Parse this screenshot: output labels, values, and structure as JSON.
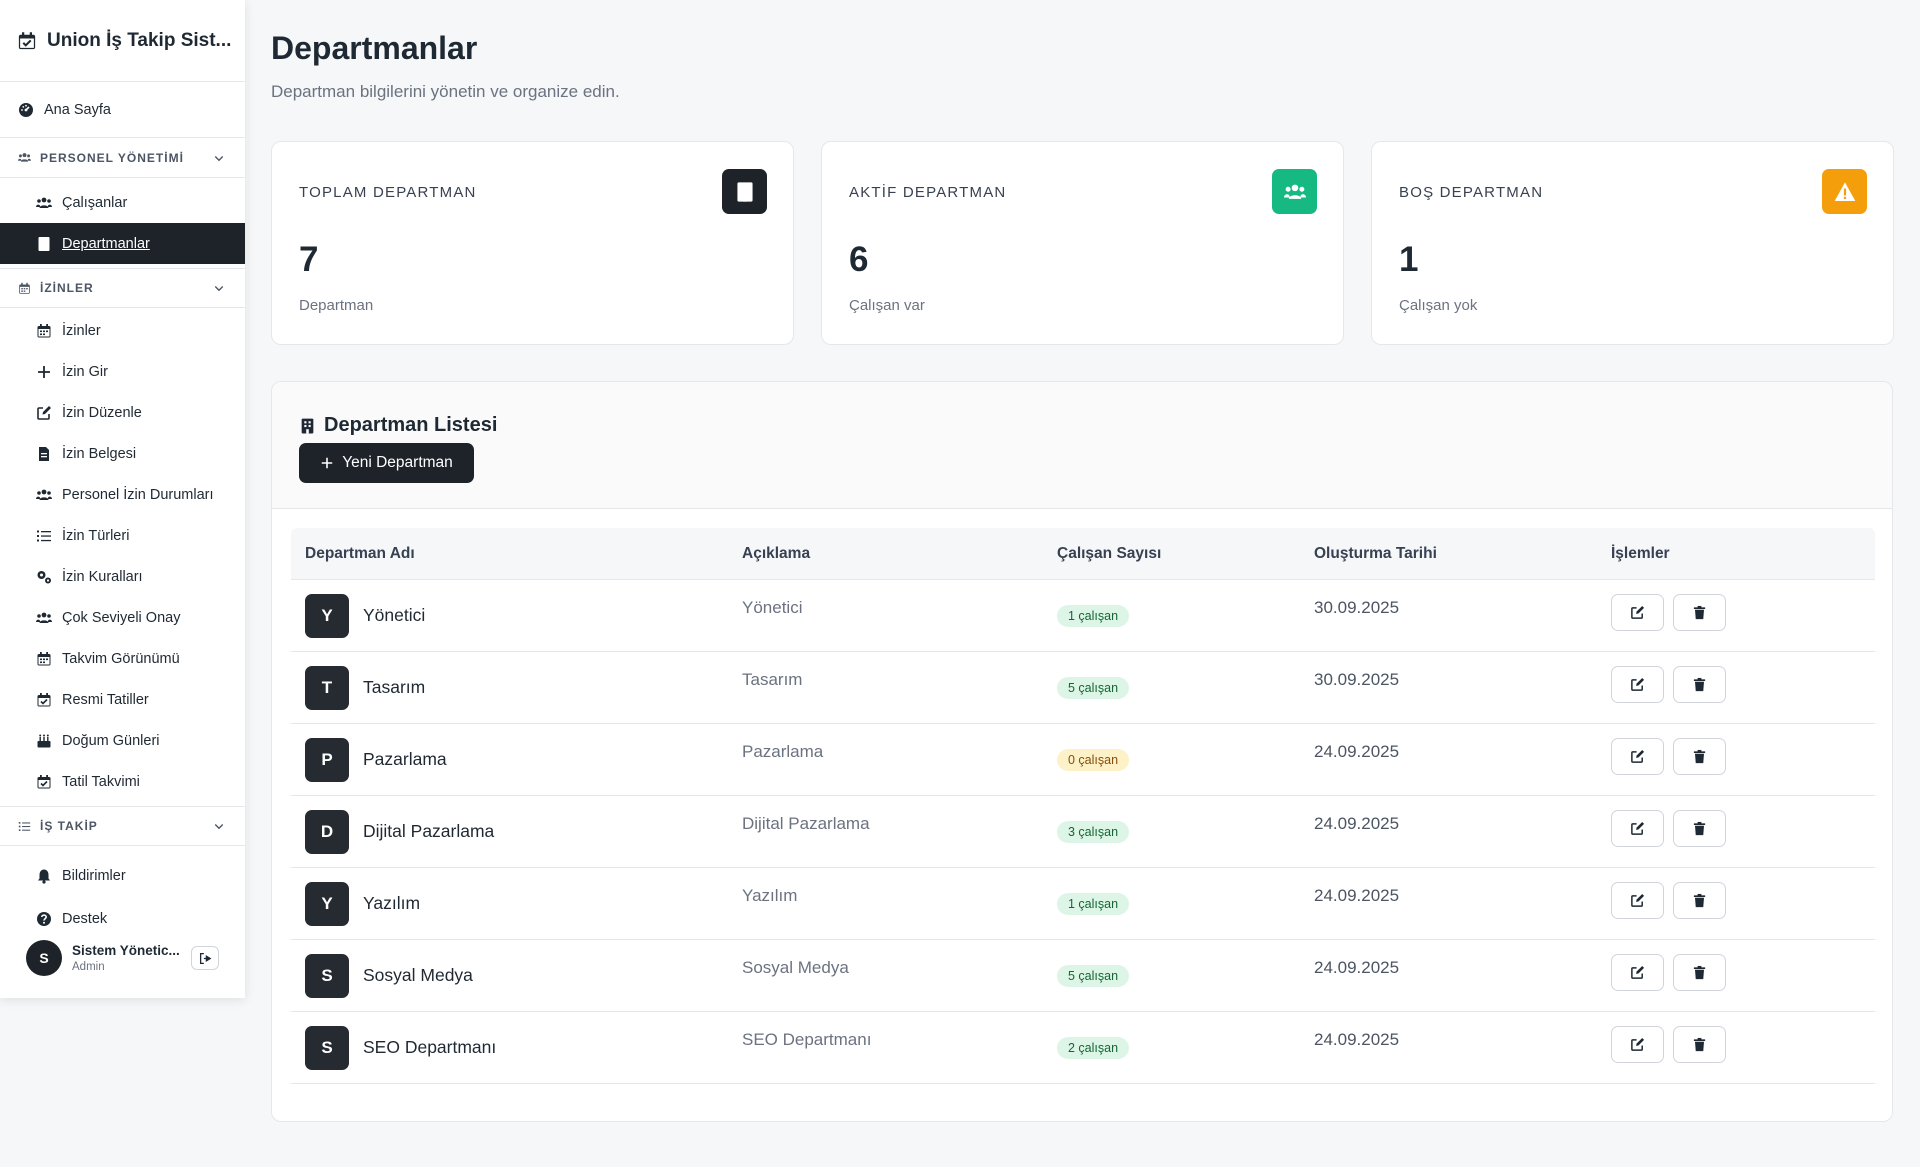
{
  "sidebar": {
    "brand": "Union İş Takip Sist...",
    "home": "Ana Sayfa",
    "sections": {
      "personel": {
        "label": "PERSONEL YÖNETİMİ",
        "items": [
          "Çalışanlar",
          "Departmanlar"
        ]
      },
      "izinler": {
        "label": "İZİNLER",
        "items": [
          "İzinler",
          "İzin Gir",
          "İzin Düzenle",
          "İzin Belgesi",
          "Personel İzin Durumları",
          "İzin Türleri",
          "İzin Kuralları",
          "Çok Seviyeli Onay",
          "Takvim Görünümü",
          "Resmi Tatiller",
          "Doğum Günleri",
          "Tatil Takvimi"
        ]
      },
      "is_takip": {
        "label": "İŞ TAKİP"
      }
    },
    "bottom": [
      "Bildirimler",
      "Destek"
    ],
    "user": {
      "initial": "S",
      "name": "Sistem Yönetic...",
      "role": "Admin"
    }
  },
  "page": {
    "title": "Departmanlar",
    "subtitle": "Departman bilgilerini yönetin ve organize edin."
  },
  "stats": [
    {
      "label": "TOPLAM DEPARTMAN",
      "value": "7",
      "caption": "Departman",
      "icon": "building-icon",
      "color": "#1e2329"
    },
    {
      "label": "AKTİF DEPARTMAN",
      "value": "6",
      "caption": "Çalışan var",
      "icon": "users-icon",
      "color": "#16b981"
    },
    {
      "label": "BOŞ DEPARTMAN",
      "value": "1",
      "caption": "Çalışan yok",
      "icon": "warning-icon",
      "color": "#f59e0b"
    }
  ],
  "list": {
    "title": "Departman Listesi",
    "new_button": "Yeni Departman",
    "columns": [
      "Departman Adı",
      "Açıklama",
      "Çalışan Sayısı",
      "Oluşturma Tarihi",
      "İşlemler"
    ],
    "rows": [
      {
        "initial": "Y",
        "name": "Yönetici",
        "desc": "Yönetici",
        "count": "1 çalışan",
        "date": "30.09.2025"
      },
      {
        "initial": "T",
        "name": "Tasarım",
        "desc": "Tasarım",
        "count": "5 çalışan",
        "date": "30.09.2025"
      },
      {
        "initial": "P",
        "name": "Pazarlama",
        "desc": "Pazarlama",
        "count": "0 çalışan",
        "date": "24.09.2025"
      },
      {
        "initial": "D",
        "name": "Dijital Pazarlama",
        "desc": "Dijital Pazarlama",
        "count": "3 çalışan",
        "date": "24.09.2025"
      },
      {
        "initial": "Y",
        "name": "Yazılım",
        "desc": "Yazılım",
        "count": "1 çalışan",
        "date": "24.09.2025"
      },
      {
        "initial": "S",
        "name": "Sosyal Medya",
        "desc": "Sosyal Medya",
        "count": "5 çalışan",
        "date": "24.09.2025"
      },
      {
        "initial": "S",
        "name": "SEO Departmanı",
        "desc": "SEO Departmanı",
        "count": "2 çalışan",
        "date": "24.09.2025"
      }
    ]
  }
}
